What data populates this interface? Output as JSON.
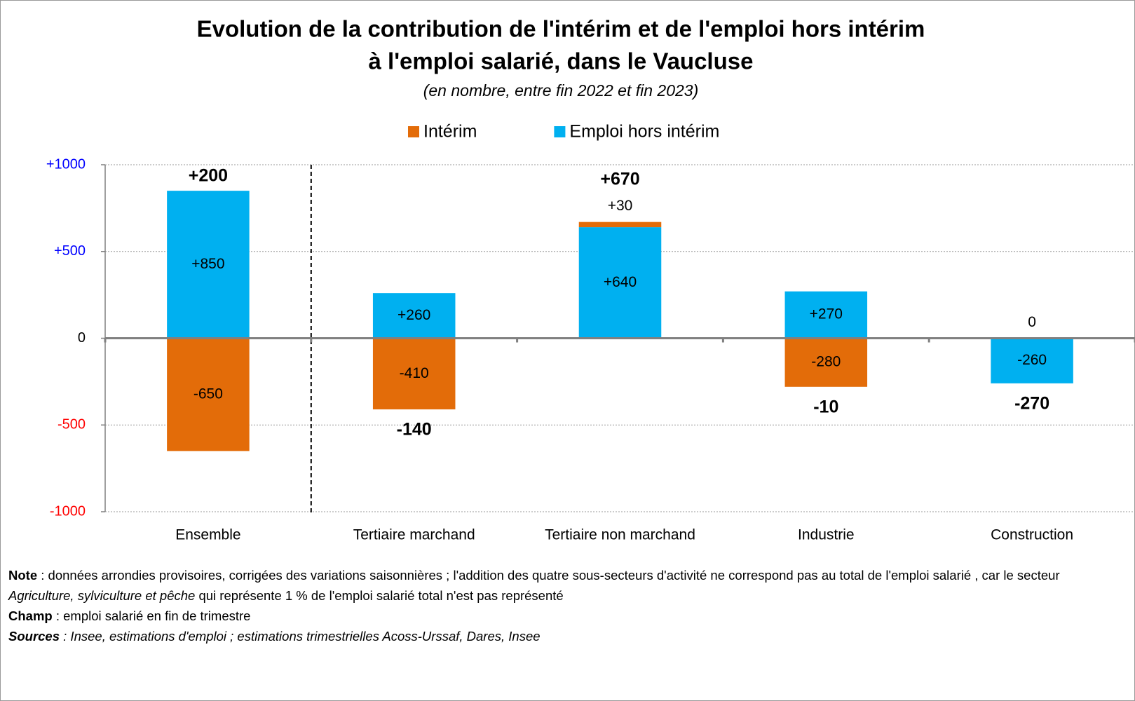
{
  "chart_data": {
    "type": "stacked_bar",
    "title": [
      "Evolution de la contribution de l'intérim et de l'emploi hors intérim",
      "à l'emploi salarié, dans le Vaucluse"
    ],
    "subtitle": "(en nombre, entre fin 2022 et fin 2023)",
    "categories": [
      "Ensemble",
      "Tertiaire marchand",
      "Tertiaire non marchand",
      "Industrie",
      "Construction"
    ],
    "series": [
      {
        "name": "Intérim",
        "color": "#e36c09",
        "values": [
          -650,
          -410,
          30,
          -280,
          0
        ],
        "value_labels": [
          "-650",
          "-410",
          "+30",
          "-280",
          "0"
        ]
      },
      {
        "name": "Emploi hors intérim",
        "color": "#00b0f0",
        "values": [
          850,
          260,
          640,
          270,
          -260
        ],
        "value_labels": [
          "+850",
          "+260",
          "+640",
          "+270",
          "-260"
        ]
      }
    ],
    "totals": {
      "values": [
        200,
        -140,
        670,
        -10,
        -270
      ],
      "value_labels": [
        "+200",
        "-140",
        "+670",
        "-10",
        "-270"
      ]
    },
    "ylim": [
      -1000,
      1000
    ],
    "yticks": [
      {
        "value": -1000,
        "label": "-1000"
      },
      {
        "value": -500,
        "label": "-500"
      },
      0,
      {
        "value": 500,
        "label": "+500"
      },
      {
        "value": 1000,
        "label": "+1000"
      }
    ],
    "grid": true,
    "legend": "top"
  },
  "notes": [
    [
      {
        "text": "Note",
        "style": "bold"
      },
      {
        "text": " : données arrondies provisoires, corrigées des variations saisonnières ; l'addition des quatre sous-secteurs d'activité ne correspond pas au total de l'emploi salarié , car le secteur ",
        "style": "normal"
      },
      {
        "text": "Agriculture, sylviculture et pêche",
        "style": "italic"
      },
      {
        "text": " qui représente 1 % de l'emploi salarié total n'est pas représenté",
        "style": "normal"
      }
    ],
    [
      {
        "text": "Champ",
        "style": "bold"
      },
      {
        "text": " : emploi salarié en fin de trimestre",
        "style": "normal"
      }
    ],
    [
      {
        "text": "Sources",
        "style": "bold-italic"
      },
      {
        "text": " : Insee, estimations d'emploi ; estimations trimestrielles Acoss-Urssaf, Dares, Insee",
        "style": "italic"
      }
    ]
  ]
}
